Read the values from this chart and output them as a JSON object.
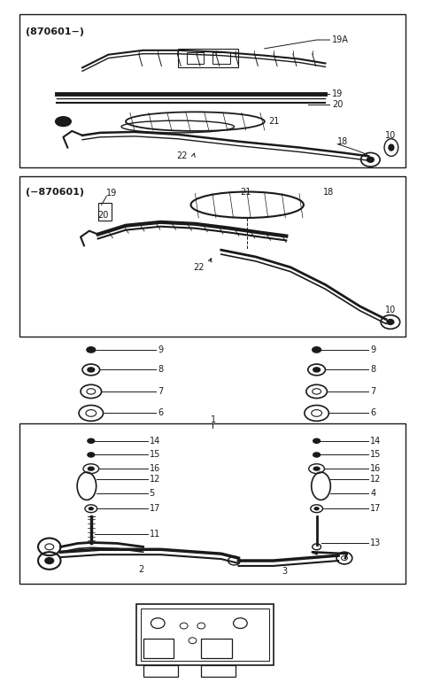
{
  "bg_color": "#ffffff",
  "line_color": "#1a1a1a",
  "fig_width": 4.8,
  "fig_height": 7.79,
  "dpi": 100
}
